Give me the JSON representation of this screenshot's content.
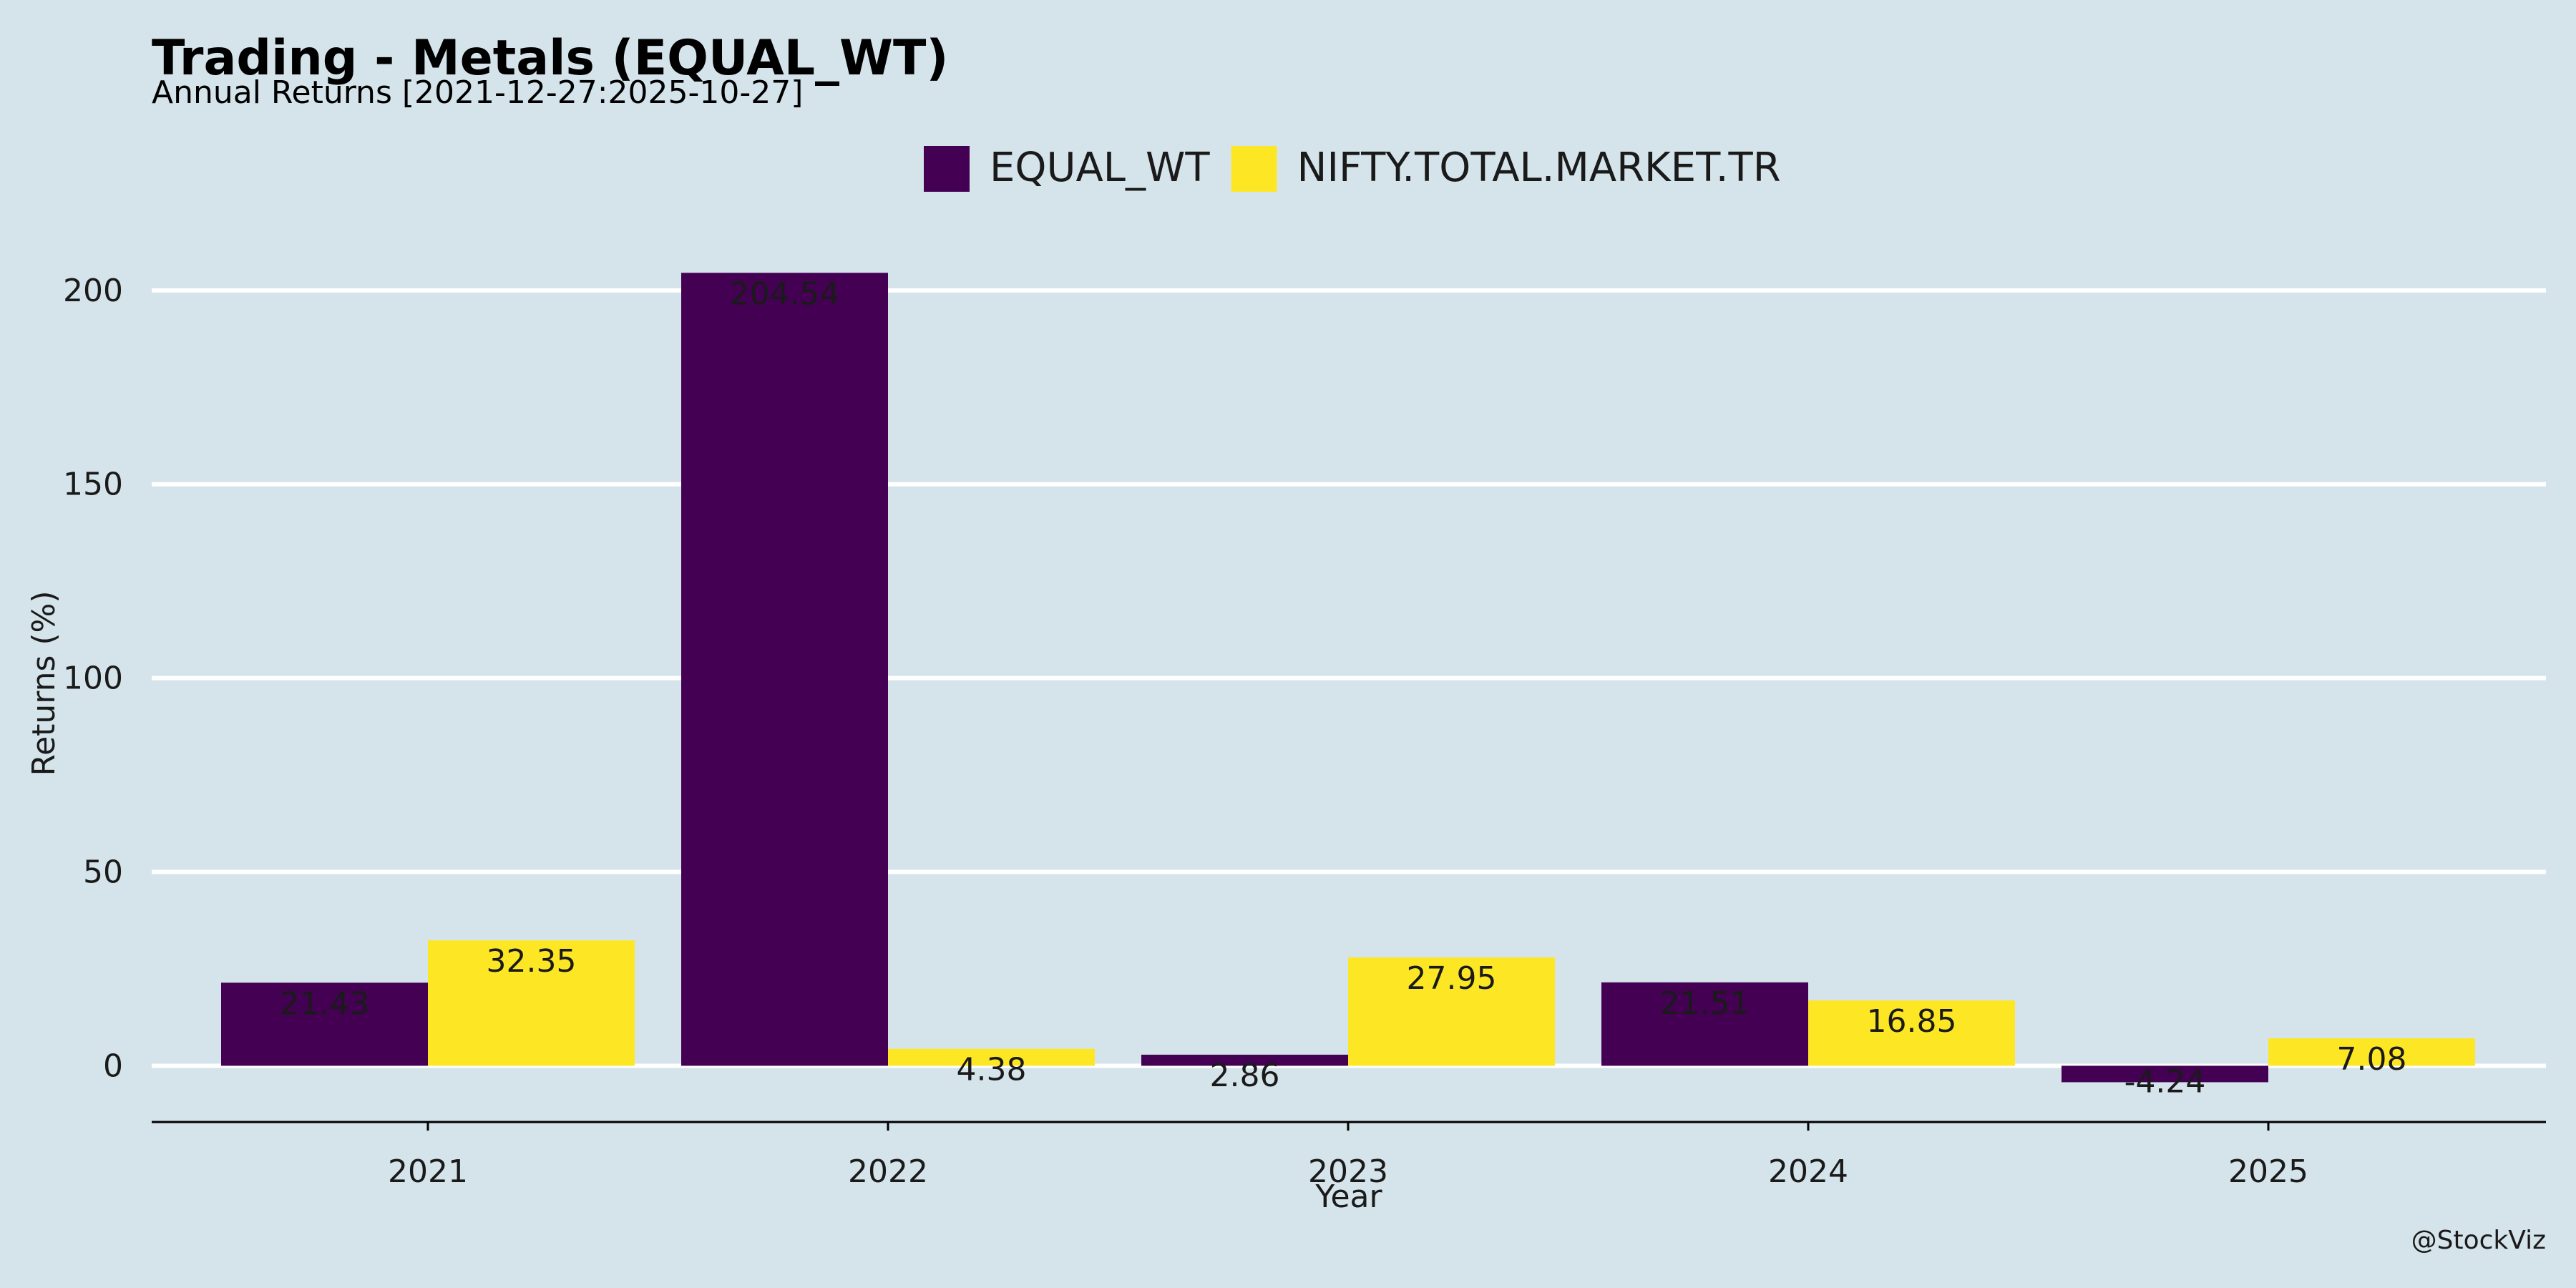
{
  "chart_data": {
    "type": "bar",
    "title": "Trading - Metals (EQUAL_WT)",
    "subtitle": "Annual Returns [2021-12-27:2025-10-27]",
    "xlabel": "Year",
    "ylabel": "Returns (%)",
    "categories": [
      "2021",
      "2022",
      "2023",
      "2024",
      "2025"
    ],
    "series": [
      {
        "name": "EQUAL_WT",
        "color": "#440154",
        "values": [
          21.43,
          204.54,
          2.86,
          21.51,
          -4.24
        ]
      },
      {
        "name": "NIFTY.TOTAL.MARKET.TR",
        "color": "#fde725",
        "values": [
          32.35,
          4.38,
          27.95,
          16.85,
          7.08
        ]
      }
    ],
    "data_labels": [
      [
        "21.43",
        "204.54",
        "2.86",
        "21.51",
        "-4.24"
      ],
      [
        "32.35",
        "4.38",
        "27.95",
        "16.85",
        "7.08"
      ]
    ],
    "ylim": [
      -14.5,
      214
    ],
    "yticks": [
      0,
      50,
      100,
      150,
      200
    ],
    "grid": "horizontal",
    "legend_position": "top",
    "caption": "@StockViz",
    "background": "#d5e4eb"
  }
}
